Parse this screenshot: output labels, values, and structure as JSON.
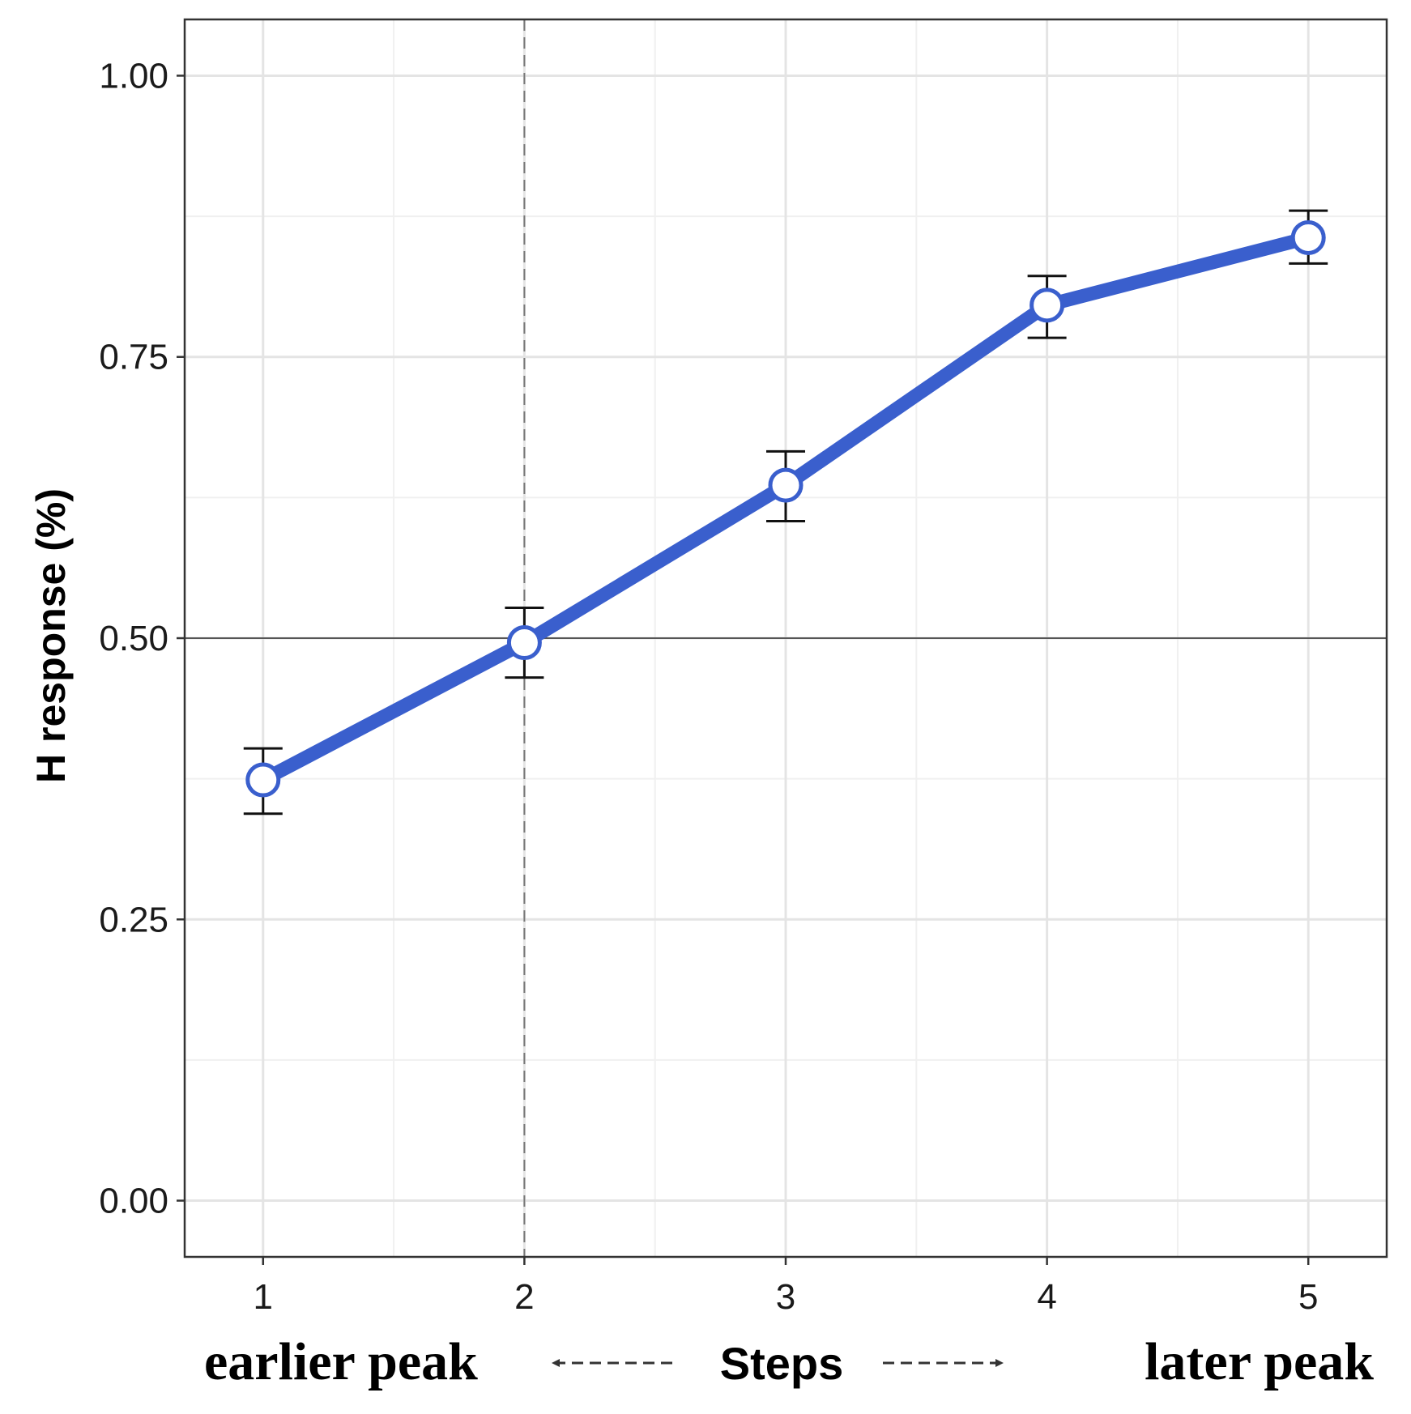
{
  "chart_data": {
    "type": "line",
    "title": "",
    "xlabel": "Steps",
    "ylabel": "H response (%)",
    "x": [
      1,
      2,
      3,
      4,
      5
    ],
    "x_tick_labels": [
      "1",
      "2",
      "3",
      "4",
      "5"
    ],
    "xlim": [
      0.7,
      5.3
    ],
    "ylim": [
      -0.05,
      1.05
    ],
    "y_ticks": [
      0.0,
      0.25,
      0.5,
      0.75,
      1.0
    ],
    "y_tick_labels": [
      "0.00",
      "0.25",
      "0.50",
      "0.75",
      "1.00"
    ],
    "grid": true,
    "series": [
      {
        "values": [
          0.374,
          0.496,
          0.636,
          0.796,
          0.856
        ],
        "error_low": [
          0.344,
          0.465,
          0.604,
          0.767,
          0.833
        ],
        "error_high": [
          0.402,
          0.527,
          0.666,
          0.822,
          0.88
        ],
        "color": "#3a5fcd",
        "marker": "open-circle"
      }
    ],
    "reference_lines": {
      "horizontal_y": 0.5,
      "vertical_dashed_x": 2
    },
    "annotations": {
      "left": "earlier peak",
      "right": "later peak"
    }
  }
}
